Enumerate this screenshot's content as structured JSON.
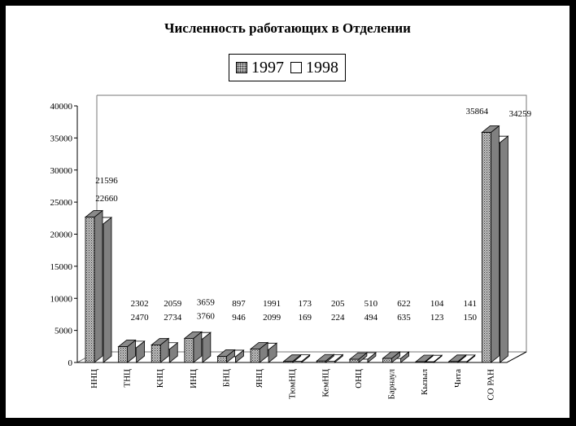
{
  "chart_data": {
    "type": "bar",
    "title": "Численность работающих в Отделении",
    "categories": [
      "ННЦ",
      "ТНЦ",
      "КНЦ",
      "ИНЦ",
      "БНЦ",
      "ЯНЦ",
      "ТюмНЦ",
      "КемНЦ",
      "ОНЦ",
      "Барнаул",
      "Кызыл",
      "Чита",
      "СО РАН"
    ],
    "series": [
      {
        "name": "1997",
        "values": [
          22660,
          2470,
          2734,
          3760,
          946,
          2099,
          169,
          224,
          494,
          635,
          123,
          150,
          35864
        ]
      },
      {
        "name": "1998",
        "values": [
          21596,
          2302,
          2059,
          3659,
          897,
          1991,
          173,
          205,
          510,
          622,
          104,
          141,
          34259
        ]
      }
    ],
    "yticks": [
      "0",
      "5000",
      "10000",
      "15000",
      "20000",
      "25000",
      "30000",
      "35000",
      "40000"
    ],
    "ylim": [
      0,
      40000
    ],
    "legend_position": "top-center",
    "colors": {
      "series_1997": "#b8b8b8",
      "series_1998": "#ffffff",
      "background": "#000000",
      "plot": "#ffffff"
    }
  }
}
